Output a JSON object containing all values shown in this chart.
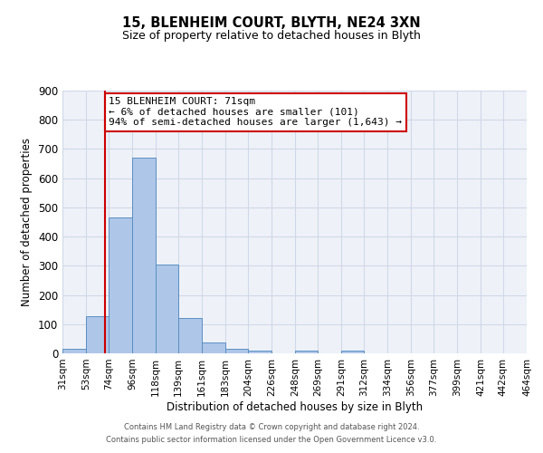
{
  "title": "15, BLENHEIM COURT, BLYTH, NE24 3XN",
  "subtitle": "Size of property relative to detached houses in Blyth",
  "xlabel": "Distribution of detached houses by size in Blyth",
  "ylabel": "Number of detached properties",
  "bin_labels": [
    "31sqm",
    "53sqm",
    "74sqm",
    "96sqm",
    "118sqm",
    "139sqm",
    "161sqm",
    "183sqm",
    "204sqm",
    "226sqm",
    "248sqm",
    "269sqm",
    "291sqm",
    "312sqm",
    "334sqm",
    "356sqm",
    "377sqm",
    "399sqm",
    "421sqm",
    "442sqm",
    "464sqm"
  ],
  "bar_values": [
    15,
    127,
    465,
    670,
    303,
    120,
    37,
    15,
    8,
    0,
    8,
    0,
    8,
    0,
    0,
    0,
    0,
    0,
    0,
    0
  ],
  "bar_color": "#aec6e8",
  "bar_edge_color": "#5a8fc4",
  "vline_x": 71,
  "vline_color": "#cc0000",
  "annotation_title": "15 BLENHEIM COURT: 71sqm",
  "annotation_line1": "← 6% of detached houses are smaller (101)",
  "annotation_line2": "94% of semi-detached houses are larger (1,643) →",
  "annotation_box_color": "#ffffff",
  "annotation_box_edge_color": "#cc0000",
  "ylim": [
    0,
    900
  ],
  "yticks": [
    0,
    100,
    200,
    300,
    400,
    500,
    600,
    700,
    800,
    900
  ],
  "grid_color": "#d0d8e8",
  "background_color": "#eef2f8",
  "footer1": "Contains HM Land Registry data © Crown copyright and database right 2024.",
  "footer2": "Contains public sector information licensed under the Open Government Licence v3.0.",
  "bin_edges": [
    31,
    53,
    74,
    96,
    118,
    139,
    161,
    183,
    204,
    226,
    248,
    269,
    291,
    312,
    334,
    356,
    377,
    399,
    421,
    442,
    464
  ]
}
